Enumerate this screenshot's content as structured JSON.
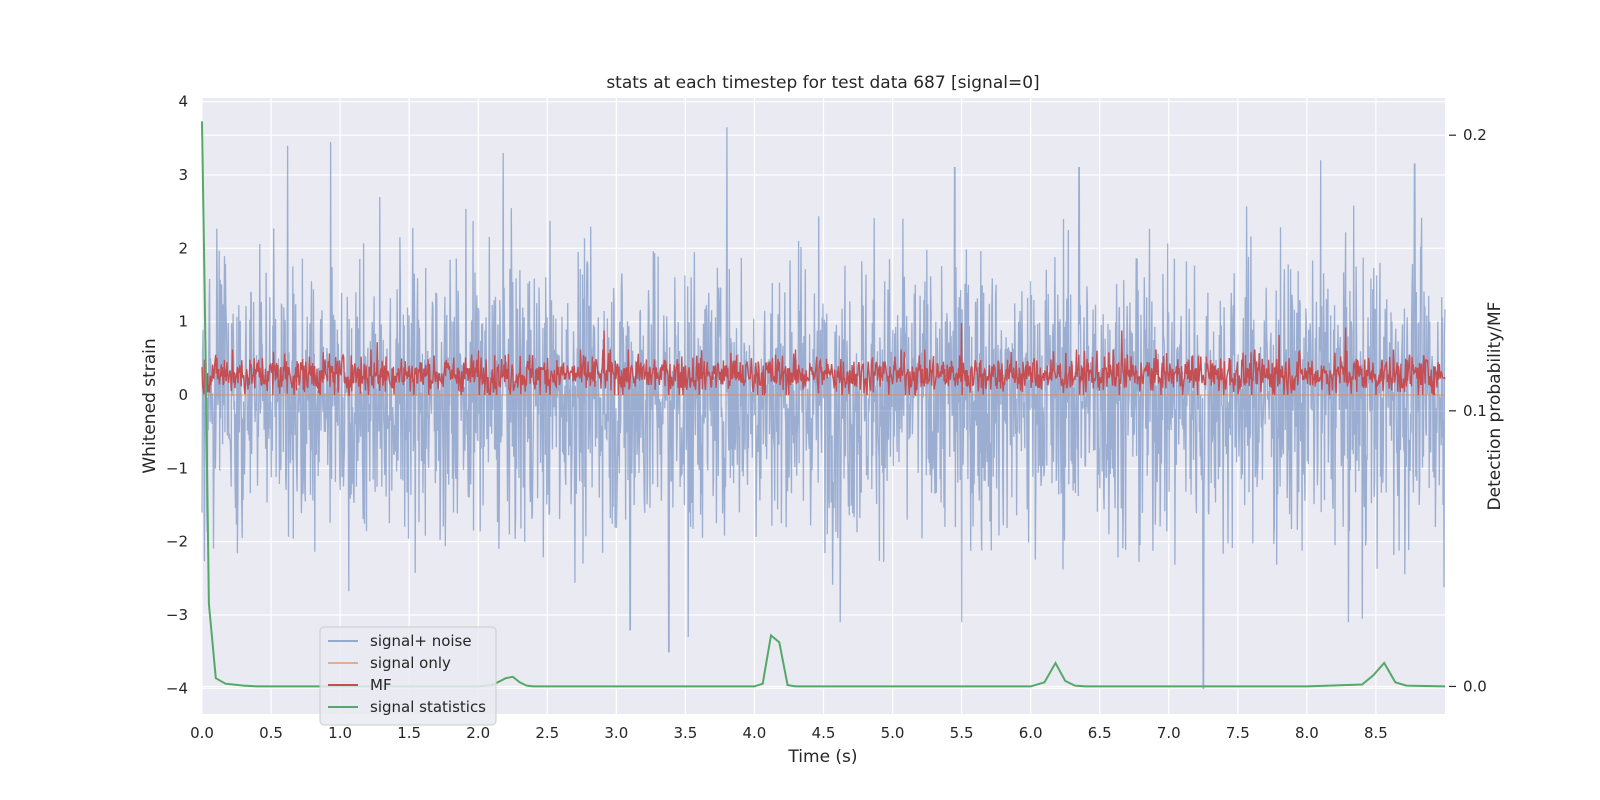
{
  "chart_data": {
    "type": "line",
    "title": "stats at each timestep for test data 687 [signal=0]",
    "xlabel": "Time (s)",
    "ylabel": "Whitened strain",
    "y2label": "Detection probability/MF",
    "xlim": [
      0.0,
      9.0
    ],
    "ylim": [
      -4.35,
      4.05
    ],
    "y2lim": [
      -0.01,
      0.2135
    ],
    "x_ticks": [
      "0.0",
      "0.5",
      "1.0",
      "1.5",
      "2.0",
      "2.5",
      "3.0",
      "3.5",
      "4.0",
      "4.5",
      "5.0",
      "5.5",
      "6.0",
      "6.5",
      "7.0",
      "7.5",
      "8.0",
      "8.5"
    ],
    "x_tick_values": [
      0,
      0.5,
      1,
      1.5,
      2,
      2.5,
      3,
      3.5,
      4,
      4.5,
      5,
      5.5,
      6,
      6.5,
      7,
      7.5,
      8,
      8.5
    ],
    "y_ticks": [
      "4",
      "3",
      "2",
      "1",
      "0",
      "−1",
      "−2",
      "−3",
      "−4"
    ],
    "y_tick_values": [
      4,
      3,
      2,
      1,
      0,
      -1,
      -2,
      -3,
      -4
    ],
    "y2_ticks": [
      "0.2",
      "0.1",
      "0.0"
    ],
    "y2_tick_values": [
      0.2,
      0.1,
      0.0
    ],
    "grid": true,
    "legend_position": "lower-left",
    "colors": {
      "background": "#eaeaf2",
      "grid": "#ffffff",
      "noise": "#4c72b0",
      "signal_only": "#dd8452",
      "mf": "#c44e52",
      "stats": "#55a868"
    },
    "series": [
      {
        "name": "signal+ noise",
        "axis": "left",
        "style": "dense noise, amplitude about ±2 with spikes up to 3.6 and down to -4.0",
        "spikes": [
          {
            "x": 0.62,
            "y": 3.4
          },
          {
            "x": 0.93,
            "y": 3.45
          },
          {
            "x": 2.18,
            "y": 3.3
          },
          {
            "x": 3.8,
            "y": 3.65
          },
          {
            "x": 5.45,
            "y": 3.1
          },
          {
            "x": 6.35,
            "y": 3.1
          },
          {
            "x": 7.25,
            "y": 2.9
          },
          {
            "x": 8.1,
            "y": 3.2
          },
          {
            "x": 8.78,
            "y": 3.15
          },
          {
            "x": 3.38,
            "y": -3.5
          },
          {
            "x": 3.52,
            "y": -3.3
          },
          {
            "x": 3.1,
            "y": -3.2
          },
          {
            "x": 4.62,
            "y": -3.1
          },
          {
            "x": 5.5,
            "y": -3.1
          },
          {
            "x": 7.25,
            "y": -4.0
          },
          {
            "x": 8.3,
            "y": -3.1
          },
          {
            "x": 8.4,
            "y": -3.05
          }
        ]
      },
      {
        "name": "signal only",
        "axis": "left",
        "x": [
          0,
          9
        ],
        "y": [
          0,
          0
        ]
      },
      {
        "name": "MF",
        "axis": "left",
        "style": "dense band between 0 and 0.6",
        "spikes": [
          {
            "x": 0.22,
            "y": 0.62
          },
          {
            "x": 1.27,
            "y": 0.72
          },
          {
            "x": 2.91,
            "y": 0.88
          },
          {
            "x": 5.5,
            "y": 0.98
          },
          {
            "x": 6.66,
            "y": 0.88
          },
          {
            "x": 7.8,
            "y": 0.82
          },
          {
            "x": 8.28,
            "y": 0.92
          }
        ]
      },
      {
        "name": "signal statistics",
        "axis": "right",
        "x": [
          0.0,
          0.02,
          0.05,
          0.1,
          0.17,
          0.3,
          0.4,
          0.6,
          1.0,
          1.5,
          2.0,
          2.1,
          2.2,
          2.25,
          2.3,
          2.35,
          2.4,
          3.0,
          4.0,
          4.06,
          4.12,
          4.18,
          4.24,
          4.3,
          5.0,
          6.0,
          6.1,
          6.18,
          6.25,
          6.32,
          6.4,
          7.0,
          8.0,
          8.4,
          8.48,
          8.56,
          8.64,
          8.72,
          9.0
        ],
        "y": [
          0.205,
          0.14,
          0.03,
          0.003,
          0.001,
          0.0003,
          0.0,
          0.0,
          0.0,
          0.0,
          0.0,
          0.0005,
          0.003,
          0.0035,
          0.0015,
          0.0003,
          0.0,
          0.0,
          0.0,
          0.001,
          0.0185,
          0.016,
          0.0005,
          0.0,
          0.0,
          0.0,
          0.0015,
          0.0085,
          0.002,
          0.0003,
          0.0,
          0.0,
          0.0,
          0.0007,
          0.004,
          0.0085,
          0.0015,
          0.0003,
          0.0
        ]
      }
    ]
  }
}
